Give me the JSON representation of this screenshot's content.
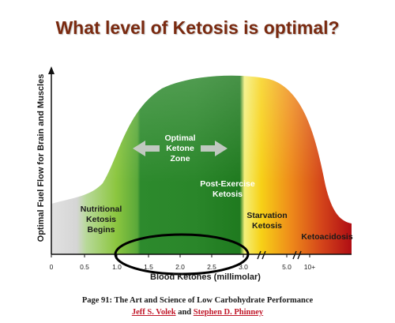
{
  "title": "What level of Ketosis is optimal?",
  "caption": {
    "line1": "Page 91: The Art and Science of Low Carbohydrate Performance",
    "author1": "Jeff S. Volek",
    "connector": "and",
    "author2": "Stephen D. Phinney"
  },
  "colors": {
    "title": "#7a2a10",
    "grey_zone": "#d9d9d9",
    "nutritional_zone": "#8cc63f",
    "optimal_zone": "#2d8a2d",
    "post_exercise_zone": "#1f7a1f",
    "starvation_zone": "#f7d117",
    "ketoacidosis_zone": "#c1121c",
    "author_link": "#c0182a"
  },
  "chart_data": {
    "type": "area",
    "title": "What level of Ketosis is optimal?",
    "xlabel": "Blood Ketones (millimolar)",
    "ylabel": "Optimal Fuel Flow for Brain and Muscles",
    "x_ticks": [
      "0",
      "0.5",
      "1.0",
      "1.5",
      "2.0",
      "2.5",
      "3.0",
      "5.0",
      "10+"
    ],
    "axis_breaks_after": [
      "3.0",
      "5.0"
    ],
    "curve_shape": "bell",
    "zones": [
      {
        "label": "Nutritional Ketosis Begins",
        "lines": [
          "Nutritional",
          "Ketosis",
          "Begins"
        ],
        "color": "#8cc63f",
        "text_color": "#1a1a1a"
      },
      {
        "label": "Optimal Ketone Zone",
        "lines": [
          "Optimal",
          "Ketone",
          "Zone"
        ],
        "color": "#2d8a2d",
        "text_color": "#ffffff",
        "arrow": "double-headed"
      },
      {
        "label": "Post-Exercise Ketosis",
        "lines": [
          "Post-Exercise",
          "Ketosis"
        ],
        "color": "#1f7a1f",
        "text_color": "#ffffff"
      },
      {
        "label": "Starvation Ketosis",
        "lines": [
          "Starvation",
          "Ketosis"
        ],
        "color": "#f7d117",
        "text_color": "#1a1a1a"
      },
      {
        "label": "Ketoacidosis",
        "lines": [
          "Ketoacidosis"
        ],
        "color": "#c1121c",
        "text_color": "#1a1a1a"
      }
    ],
    "highlight": {
      "shape": "ellipse",
      "x_range": [
        "1.0",
        "3.0"
      ]
    },
    "grid": false,
    "legend": "none"
  }
}
